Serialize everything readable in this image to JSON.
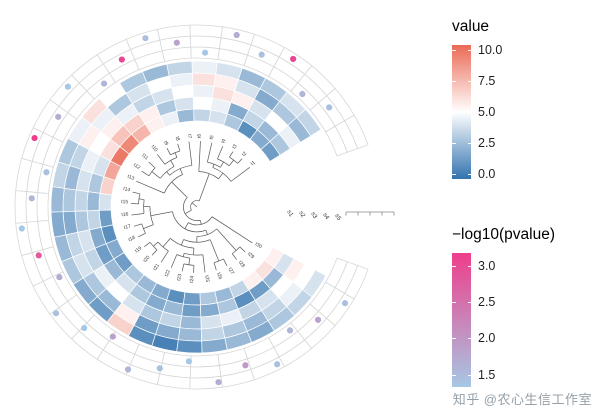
{
  "watermark": "知乎 @农心生信工作室",
  "legends": {
    "value": {
      "title": "value",
      "min": 0,
      "max": 10,
      "ticks": [
        10.0,
        7.5,
        5.0,
        2.5,
        0.0
      ],
      "colors": {
        "low": "#3273AE",
        "mid": "#FFFFFF",
        "high": "#EA6A55"
      }
    },
    "pvalue": {
      "title": "−log10(pvalue)",
      "min": 1.4,
      "max": 3.1,
      "ticks": [
        3.0,
        2.5,
        2.0,
        1.5
      ],
      "colors": {
        "low": "#A6C8E4",
        "high": "#EE3E8B"
      }
    }
  },
  "chart_data": {
    "type": "circular-tree-heatmap",
    "description": "Circular phylogenetic tree with 5 surrounding heatmap rings (fill = value, 0-10, blue-white-red) and 3 outer grid rings holding scatter dots colored by -log10(pvalue) (1.5-3.0, light blue to pink). Opening/gap on the right side holds ring labels and a radial axis.",
    "leaves": [
      "t1",
      "t2",
      "t3",
      "t4",
      "t5",
      "t6",
      "t7",
      "t8",
      "t9",
      "t10",
      "t11",
      "t12",
      "t13",
      "t14",
      "t15",
      "t16",
      "t17",
      "t18",
      "t19",
      "t20",
      "t21",
      "t22",
      "t23",
      "t24",
      "t25",
      "t26",
      "t27",
      "t28",
      "t29",
      "t30"
    ],
    "heatmap_rings": [
      {
        "name": "s1",
        "values": [
          1.5,
          2,
          1,
          3,
          4,
          3.5,
          2.5,
          4.5,
          5.5,
          7.5,
          9,
          9.5,
          8,
          6.5,
          4,
          1.5,
          1,
          2,
          1.5,
          3,
          2.5,
          2,
          1,
          1.5,
          3,
          2.5,
          3.5,
          5.5,
          6,
          5.5
        ]
      },
      {
        "name": "s2",
        "values": [
          3,
          2.5,
          3.5,
          2,
          4.5,
          5,
          4,
          3,
          5.5,
          6.5,
          7,
          6,
          4,
          3,
          2.5,
          3.5,
          2,
          1.5,
          2.5,
          4,
          3,
          2,
          2.5,
          1.5,
          2,
          3,
          1,
          1.5,
          2.5,
          4
        ]
      },
      {
        "name": "s3",
        "values": [
          4.5,
          5,
          4,
          5.5,
          6,
          4.5,
          5,
          4,
          3.5,
          4.5,
          5.5,
          5,
          4.5,
          4,
          3.5,
          3,
          4,
          3.5,
          4.5,
          5,
          4,
          3,
          3.5,
          2.5,
          4,
          4.5,
          3.5,
          4,
          5,
          5.5
        ]
      },
      {
        "name": "s4",
        "values": [
          2.5,
          3,
          2,
          4,
          5.5,
          6,
          4.5,
          5,
          4,
          3,
          4.5,
          5.5,
          3.5,
          2.5,
          3,
          2,
          3.5,
          4,
          3,
          2.5,
          5.5,
          1.5,
          2,
          2.5,
          3.5,
          3,
          2.5,
          3.5,
          4.5,
          5
        ]
      },
      {
        "name": "s5",
        "values": [
          3.5,
          4,
          3,
          2.5,
          4,
          4.5,
          3.5,
          2.5,
          3,
          5,
          6,
          4.5,
          3,
          3.5,
          2.5,
          2,
          2.5,
          3,
          2,
          1.5,
          6.5,
          1,
          0.5,
          1,
          2,
          2.5,
          2,
          3,
          3.5,
          4
        ]
      }
    ],
    "dots": [
      {
        "leaf": 0,
        "ring": 1,
        "p": 1.6
      },
      {
        "leaf": 1,
        "ring": 0,
        "p": 1.7
      },
      {
        "leaf": 2,
        "ring": 2,
        "p": 2.9
      },
      {
        "leaf": 3,
        "ring": 1,
        "p": 1.6
      },
      {
        "leaf": 4,
        "ring": 2,
        "p": 1.8
      },
      {
        "leaf": 5,
        "ring": 0,
        "p": 1.5
      },
      {
        "leaf": 6,
        "ring": 1,
        "p": 1.9
      },
      {
        "leaf": 7,
        "ring": 2,
        "p": 1.6
      },
      {
        "leaf": 8,
        "ring": 1,
        "p": 2.9
      },
      {
        "leaf": 9,
        "ring": 0,
        "p": 1.7
      },
      {
        "leaf": 10,
        "ring": 2,
        "p": 1.5
      },
      {
        "leaf": 11,
        "ring": 1,
        "p": 1.8
      },
      {
        "leaf": 12,
        "ring": 2,
        "p": 3.0
      },
      {
        "leaf": 13,
        "ring": 0,
        "p": 1.6
      },
      {
        "leaf": 14,
        "ring": 1,
        "p": 1.7
      },
      {
        "leaf": 15,
        "ring": 2,
        "p": 1.5
      },
      {
        "leaf": 16,
        "ring": 1,
        "p": 2.7
      },
      {
        "leaf": 17,
        "ring": 0,
        "p": 1.8
      },
      {
        "leaf": 18,
        "ring": 2,
        "p": 1.6
      },
      {
        "leaf": 19,
        "ring": 1,
        "p": 1.5
      },
      {
        "leaf": 20,
        "ring": 0,
        "p": 1.9
      },
      {
        "leaf": 21,
        "ring": 2,
        "p": 1.7
      },
      {
        "leaf": 22,
        "ring": 1,
        "p": 1.6
      },
      {
        "leaf": 23,
        "ring": 0,
        "p": 1.5
      },
      {
        "leaf": 24,
        "ring": 2,
        "p": 1.8
      },
      {
        "leaf": 25,
        "ring": 1,
        "p": 2.0
      },
      {
        "leaf": 26,
        "ring": 2,
        "p": 1.6
      },
      {
        "leaf": 27,
        "ring": 0,
        "p": 1.7
      },
      {
        "leaf": 28,
        "ring": 1,
        "p": 1.9
      },
      {
        "leaf": 29,
        "ring": 2,
        "p": 1.6
      }
    ],
    "layout": {
      "heat_start_deg": 32,
      "heat_end_deg": 332,
      "grid_start_deg": 20,
      "grid_end_deg": 340,
      "n_grid_rings": 3,
      "legend_position": "right",
      "grid": true
    }
  }
}
